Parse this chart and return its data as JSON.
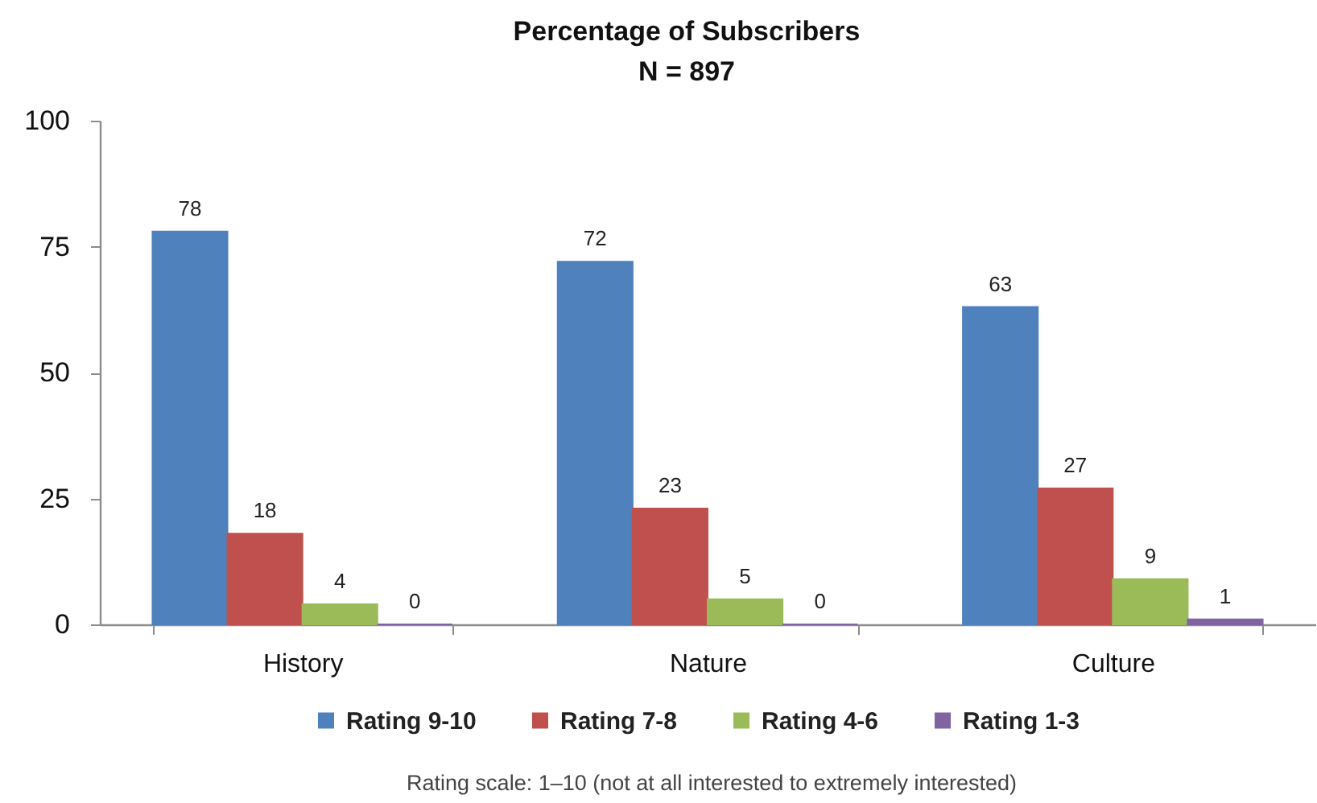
{
  "chart_data": {
    "type": "bar",
    "title": "Percentage of Subscribers",
    "subtitle": "N = 897",
    "categories": [
      "History",
      "Nature",
      "Culture"
    ],
    "series": [
      {
        "name": "Rating 9-10",
        "color": "#4f81bd",
        "values": [
          78,
          72,
          63
        ]
      },
      {
        "name": "Rating 7-8",
        "color": "#c0504d",
        "values": [
          18,
          23,
          27
        ]
      },
      {
        "name": "Rating 4-6",
        "color": "#9bbb59",
        "values": [
          4,
          5,
          9
        ]
      },
      {
        "name": "Rating 1-3",
        "color": "#8064a2",
        "values": [
          0,
          0,
          1
        ]
      }
    ],
    "ylim": [
      0,
      100
    ],
    "yticks": [
      0,
      25,
      50,
      75,
      100
    ],
    "legend": "bottom",
    "data_labels": true,
    "annotations": [
      "Rating scale: 1–10 (not at all interested to extremely interested)"
    ]
  }
}
